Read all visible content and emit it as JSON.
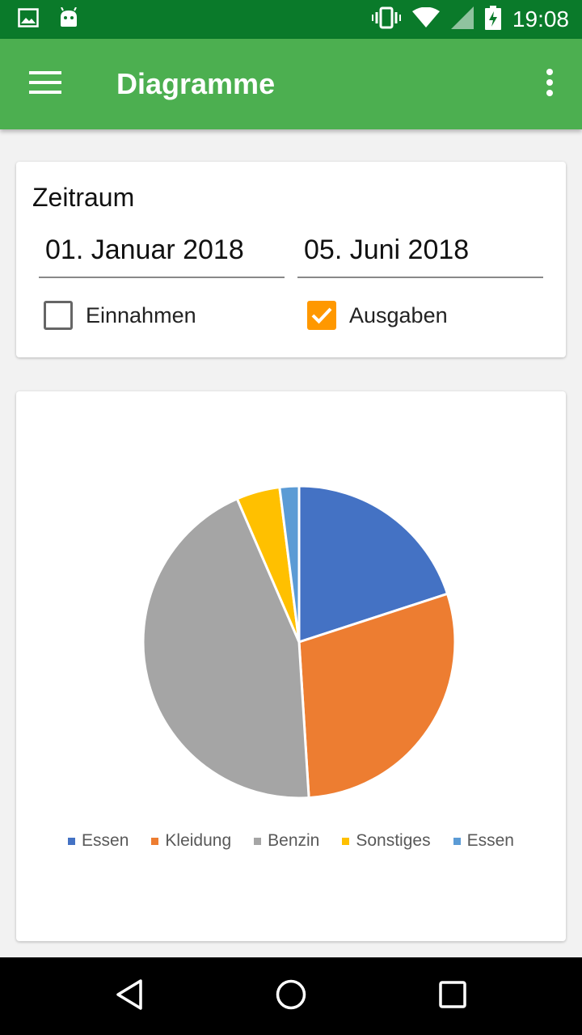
{
  "status_bar": {
    "time": "19:08",
    "icons": [
      "image-icon",
      "android-icon",
      "vibrate-icon",
      "wifi-icon",
      "signal-icon",
      "battery-charging-icon"
    ]
  },
  "app_bar": {
    "title": "Diagramme",
    "icons": [
      "menu-icon",
      "more-vert-icon"
    ]
  },
  "period": {
    "title": "Zeitraum",
    "from_date": "01. Januar 2018",
    "to_date": "05. Juni 2018",
    "income_label": "Einnahmen",
    "income_checked": false,
    "expense_label": "Ausgaben",
    "expense_checked": true
  },
  "colors": {
    "status_bar": "#0a7a2a",
    "app_bar": "#4caf50",
    "accent": "#ff9800"
  },
  "chart_data": {
    "type": "pie",
    "categories": [
      "Essen",
      "Kleidung",
      "Benzin",
      "Sonstiges",
      "Essen"
    ],
    "values": [
      20,
      29,
      44.5,
      4.5,
      2
    ],
    "colors": [
      "#4472c4",
      "#ed7d31",
      "#a5a5a5",
      "#ffc000",
      "#5b9bd5"
    ],
    "legend": "bottom"
  },
  "nav_bar": {
    "icons": [
      "back-icon",
      "home-icon",
      "recents-icon"
    ]
  }
}
